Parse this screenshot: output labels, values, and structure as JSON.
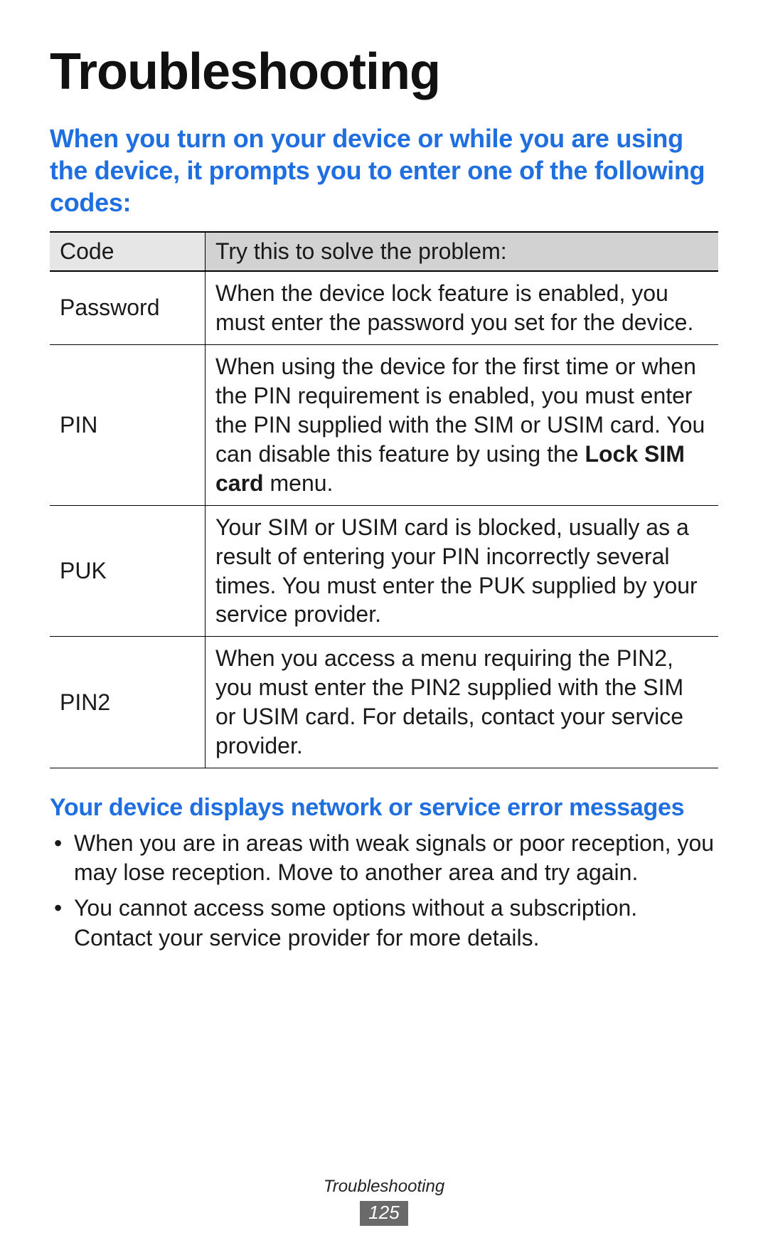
{
  "title": "Troubleshooting",
  "section1": {
    "heading": "When you turn on your device or while you are using the device, it prompts you to enter one of the following codes:",
    "table": {
      "header": {
        "col1": "Code",
        "col2": "Try this to solve the problem:"
      },
      "rows": [
        {
          "code": "Password",
          "desc": "When the device lock feature is enabled, you must enter the password you set for the device."
        },
        {
          "code": "PIN",
          "desc_pre": "When using the device for the first time or when the PIN requirement is enabled, you must enter the PIN supplied with the SIM or USIM card. You can disable this feature by using the ",
          "desc_bold": "Lock SIM card",
          "desc_post": " menu."
        },
        {
          "code": "PUK",
          "desc": "Your SIM or USIM card is blocked, usually as a result of entering your PIN incorrectly several times. You must enter the PUK supplied by your service provider."
        },
        {
          "code": "PIN2",
          "desc": "When you access a menu requiring the PIN2, you must enter the PIN2 supplied with the SIM or USIM card. For details, contact your service provider."
        }
      ]
    }
  },
  "section2": {
    "heading": "Your device displays network or service error messages",
    "bullets": [
      "When you are in areas with weak signals or poor reception, you may lose reception. Move to another area and try again.",
      "You cannot access some options without a subscription. Contact your service provider for more details."
    ]
  },
  "footer": {
    "label": "Troubleshooting",
    "page": "125"
  },
  "colors": {
    "heading_blue": "#1f6fe0",
    "table_header_bg_left": "#e6e6e6",
    "table_header_bg_right": "#d2d2d2",
    "badge_bg": "#6a6a6a",
    "text": "#1a1a1a"
  }
}
